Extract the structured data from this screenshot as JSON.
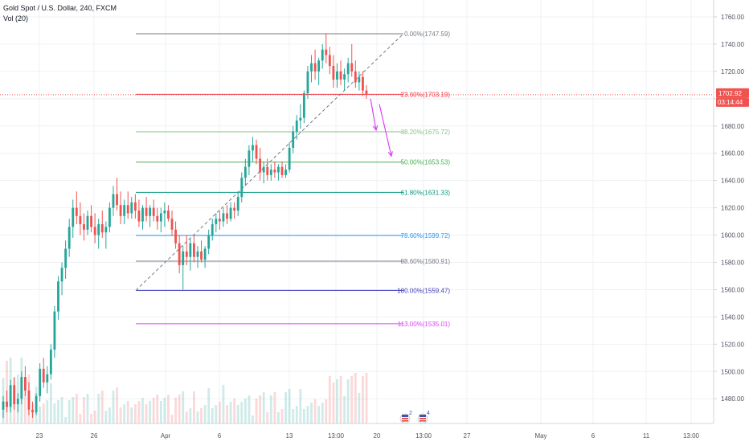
{
  "header": {
    "symbol_line": "Gold Spot / U.S. Dollar, 240, FXCM",
    "volume_label": "Vol (20)"
  },
  "colors": {
    "up": "#26a69a",
    "down": "#ef5350",
    "grid": "#eef1f5",
    "axis_text": "#50535e"
  },
  "price_axis": {
    "labels": [
      "1760.00",
      "1740.00",
      "1720.00",
      "1700.00",
      "1680.00",
      "1660.00",
      "1640.00",
      "1620.00",
      "1600.00",
      "1580.00",
      "1560.00",
      "1540.00",
      "1520.00",
      "1500.00",
      "1480.00"
    ],
    "last_price": "1702.92",
    "countdown": "03:14:44"
  },
  "time_axis": {
    "labels": [
      "23",
      "26",
      "Apr",
      "6",
      "13",
      "13:00",
      "20",
      "13:00",
      "27",
      "May",
      "6",
      "11",
      "13:00"
    ]
  },
  "events": [
    {
      "icon": "us-flag-event-icon",
      "count": "2"
    },
    {
      "icon": "us-flag-event-icon",
      "count": "4"
    }
  ],
  "chart_data": {
    "type": "candlestick",
    "symbol": "Gold Spot / U.S. Dollar",
    "interval": "240",
    "exchange": "FXCM",
    "y_range": [
      1466,
      1770
    ],
    "grid": true,
    "fib_levels": [
      {
        "label": "0.00%(1747.59)",
        "ratio": 0.0,
        "price": 1747.59,
        "color": "#787b86"
      },
      {
        "label": "23.60%(1703.19)",
        "ratio": 0.236,
        "price": 1703.19,
        "color": "#f23645"
      },
      {
        "label": "38.20%(1675.72)",
        "ratio": 0.382,
        "price": 1675.72,
        "color": "#81c784"
      },
      {
        "label": "50.00%(1653.53)",
        "ratio": 0.5,
        "price": 1653.53,
        "color": "#4caf50"
      },
      {
        "label": "61.80%(1631.33)",
        "ratio": 0.618,
        "price": 1631.33,
        "color": "#089981"
      },
      {
        "label": "78.60%(1599.72)",
        "ratio": 0.786,
        "price": 1599.72,
        "color": "#2196f3"
      },
      {
        "label": "88.60%(1580.91)",
        "ratio": 0.886,
        "price": 1580.91,
        "color": "#787b86"
      },
      {
        "label": "100.00%(1559.47)",
        "ratio": 1.0,
        "price": 1559.47,
        "color": "#3f3fb8"
      },
      {
        "label": "113.00%(1535.01)",
        "ratio": 1.13,
        "price": 1535.01,
        "color": "#e040fb"
      }
    ],
    "last_price": 1702.92,
    "candles": [
      {
        "o": 1472,
        "h": 1482,
        "l": 1466,
        "c": 1478
      },
      {
        "o": 1478,
        "h": 1486,
        "l": 1470,
        "c": 1474
      },
      {
        "o": 1474,
        "h": 1494,
        "l": 1470,
        "c": 1490
      },
      {
        "o": 1490,
        "h": 1496,
        "l": 1472,
        "c": 1476
      },
      {
        "o": 1476,
        "h": 1484,
        "l": 1470,
        "c": 1480
      },
      {
        "o": 1480,
        "h": 1500,
        "l": 1476,
        "c": 1496
      },
      {
        "o": 1496,
        "h": 1504,
        "l": 1482,
        "c": 1486
      },
      {
        "o": 1486,
        "h": 1492,
        "l": 1468,
        "c": 1472
      },
      {
        "o": 1472,
        "h": 1478,
        "l": 1466,
        "c": 1470
      },
      {
        "o": 1470,
        "h": 1484,
        "l": 1468,
        "c": 1482
      },
      {
        "o": 1482,
        "h": 1506,
        "l": 1478,
        "c": 1502
      },
      {
        "o": 1502,
        "h": 1510,
        "l": 1488,
        "c": 1492
      },
      {
        "o": 1492,
        "h": 1504,
        "l": 1484,
        "c": 1498
      },
      {
        "o": 1498,
        "h": 1520,
        "l": 1494,
        "c": 1516
      },
      {
        "o": 1516,
        "h": 1548,
        "l": 1510,
        "c": 1544
      },
      {
        "o": 1544,
        "h": 1570,
        "l": 1538,
        "c": 1566
      },
      {
        "o": 1566,
        "h": 1580,
        "l": 1556,
        "c": 1576
      },
      {
        "o": 1576,
        "h": 1596,
        "l": 1568,
        "c": 1590
      },
      {
        "o": 1590,
        "h": 1612,
        "l": 1584,
        "c": 1606
      },
      {
        "o": 1606,
        "h": 1626,
        "l": 1598,
        "c": 1620
      },
      {
        "o": 1620,
        "h": 1632,
        "l": 1608,
        "c": 1614
      },
      {
        "o": 1614,
        "h": 1624,
        "l": 1600,
        "c": 1608
      },
      {
        "o": 1608,
        "h": 1616,
        "l": 1596,
        "c": 1604
      },
      {
        "o": 1604,
        "h": 1618,
        "l": 1600,
        "c": 1614
      },
      {
        "o": 1614,
        "h": 1622,
        "l": 1602,
        "c": 1606
      },
      {
        "o": 1606,
        "h": 1616,
        "l": 1594,
        "c": 1600
      },
      {
        "o": 1600,
        "h": 1612,
        "l": 1590,
        "c": 1608
      },
      {
        "o": 1608,
        "h": 1618,
        "l": 1598,
        "c": 1602
      },
      {
        "o": 1602,
        "h": 1610,
        "l": 1590,
        "c": 1606
      },
      {
        "o": 1606,
        "h": 1624,
        "l": 1602,
        "c": 1620
      },
      {
        "o": 1620,
        "h": 1636,
        "l": 1614,
        "c": 1630
      },
      {
        "o": 1630,
        "h": 1642,
        "l": 1618,
        "c": 1622
      },
      {
        "o": 1622,
        "h": 1632,
        "l": 1608,
        "c": 1614
      },
      {
        "o": 1614,
        "h": 1626,
        "l": 1608,
        "c": 1622
      },
      {
        "o": 1622,
        "h": 1632,
        "l": 1612,
        "c": 1616
      },
      {
        "o": 1616,
        "h": 1628,
        "l": 1612,
        "c": 1624
      },
      {
        "o": 1624,
        "h": 1630,
        "l": 1612,
        "c": 1618
      },
      {
        "o": 1618,
        "h": 1626,
        "l": 1606,
        "c": 1610
      },
      {
        "o": 1610,
        "h": 1622,
        "l": 1604,
        "c": 1620
      },
      {
        "o": 1620,
        "h": 1628,
        "l": 1610,
        "c": 1614
      },
      {
        "o": 1614,
        "h": 1622,
        "l": 1606,
        "c": 1620
      },
      {
        "o": 1620,
        "h": 1626,
        "l": 1610,
        "c": 1614
      },
      {
        "o": 1614,
        "h": 1620,
        "l": 1604,
        "c": 1610
      },
      {
        "o": 1610,
        "h": 1620,
        "l": 1602,
        "c": 1616
      },
      {
        "o": 1616,
        "h": 1624,
        "l": 1606,
        "c": 1618
      },
      {
        "o": 1618,
        "h": 1622,
        "l": 1610,
        "c": 1612
      },
      {
        "o": 1612,
        "h": 1618,
        "l": 1600,
        "c": 1604
      },
      {
        "o": 1604,
        "h": 1610,
        "l": 1590,
        "c": 1594
      },
      {
        "o": 1594,
        "h": 1600,
        "l": 1572,
        "c": 1578
      },
      {
        "o": 1578,
        "h": 1592,
        "l": 1560,
        "c": 1588
      },
      {
        "o": 1588,
        "h": 1600,
        "l": 1578,
        "c": 1584
      },
      {
        "o": 1584,
        "h": 1598,
        "l": 1574,
        "c": 1594
      },
      {
        "o": 1594,
        "h": 1600,
        "l": 1580,
        "c": 1584
      },
      {
        "o": 1584,
        "h": 1592,
        "l": 1576,
        "c": 1588
      },
      {
        "o": 1588,
        "h": 1596,
        "l": 1580,
        "c": 1582
      },
      {
        "o": 1582,
        "h": 1592,
        "l": 1576,
        "c": 1590
      },
      {
        "o": 1590,
        "h": 1604,
        "l": 1586,
        "c": 1600
      },
      {
        "o": 1600,
        "h": 1612,
        "l": 1596,
        "c": 1608
      },
      {
        "o": 1608,
        "h": 1616,
        "l": 1602,
        "c": 1612
      },
      {
        "o": 1612,
        "h": 1618,
        "l": 1604,
        "c": 1610
      },
      {
        "o": 1610,
        "h": 1620,
        "l": 1606,
        "c": 1616
      },
      {
        "o": 1616,
        "h": 1622,
        "l": 1608,
        "c": 1612
      },
      {
        "o": 1612,
        "h": 1624,
        "l": 1610,
        "c": 1620
      },
      {
        "o": 1620,
        "h": 1624,
        "l": 1612,
        "c": 1618
      },
      {
        "o": 1618,
        "h": 1632,
        "l": 1614,
        "c": 1628
      },
      {
        "o": 1628,
        "h": 1646,
        "l": 1624,
        "c": 1642
      },
      {
        "o": 1642,
        "h": 1656,
        "l": 1636,
        "c": 1650
      },
      {
        "o": 1650,
        "h": 1666,
        "l": 1644,
        "c": 1662
      },
      {
        "o": 1662,
        "h": 1672,
        "l": 1654,
        "c": 1666
      },
      {
        "o": 1666,
        "h": 1670,
        "l": 1652,
        "c": 1656
      },
      {
        "o": 1656,
        "h": 1664,
        "l": 1640,
        "c": 1646
      },
      {
        "o": 1646,
        "h": 1654,
        "l": 1638,
        "c": 1650
      },
      {
        "o": 1650,
        "h": 1656,
        "l": 1640,
        "c": 1644
      },
      {
        "o": 1644,
        "h": 1652,
        "l": 1640,
        "c": 1648
      },
      {
        "o": 1648,
        "h": 1654,
        "l": 1642,
        "c": 1646
      },
      {
        "o": 1646,
        "h": 1652,
        "l": 1640,
        "c": 1650
      },
      {
        "o": 1650,
        "h": 1654,
        "l": 1642,
        "c": 1644
      },
      {
        "o": 1644,
        "h": 1652,
        "l": 1642,
        "c": 1648
      },
      {
        "o": 1648,
        "h": 1668,
        "l": 1646,
        "c": 1664
      },
      {
        "o": 1664,
        "h": 1680,
        "l": 1660,
        "c": 1676
      },
      {
        "o": 1676,
        "h": 1688,
        "l": 1670,
        "c": 1684
      },
      {
        "o": 1684,
        "h": 1696,
        "l": 1678,
        "c": 1686
      },
      {
        "o": 1686,
        "h": 1706,
        "l": 1682,
        "c": 1704
      },
      {
        "o": 1704,
        "h": 1724,
        "l": 1700,
        "c": 1720
      },
      {
        "o": 1720,
        "h": 1732,
        "l": 1712,
        "c": 1726
      },
      {
        "o": 1726,
        "h": 1736,
        "l": 1714,
        "c": 1720
      },
      {
        "o": 1720,
        "h": 1730,
        "l": 1710,
        "c": 1728
      },
      {
        "o": 1728,
        "h": 1740,
        "l": 1722,
        "c": 1736
      },
      {
        "o": 1736,
        "h": 1748,
        "l": 1726,
        "c": 1732
      },
      {
        "o": 1732,
        "h": 1738,
        "l": 1718,
        "c": 1724
      },
      {
        "o": 1724,
        "h": 1732,
        "l": 1708,
        "c": 1714
      },
      {
        "o": 1714,
        "h": 1726,
        "l": 1708,
        "c": 1720
      },
      {
        "o": 1720,
        "h": 1728,
        "l": 1710,
        "c": 1714
      },
      {
        "o": 1714,
        "h": 1722,
        "l": 1706,
        "c": 1718
      },
      {
        "o": 1718,
        "h": 1730,
        "l": 1712,
        "c": 1726
      },
      {
        "o": 1726,
        "h": 1740,
        "l": 1716,
        "c": 1720
      },
      {
        "o": 1720,
        "h": 1728,
        "l": 1708,
        "c": 1712
      },
      {
        "o": 1712,
        "h": 1720,
        "l": 1706,
        "c": 1716
      },
      {
        "o": 1716,
        "h": 1720,
        "l": 1702,
        "c": 1706
      },
      {
        "o": 1706,
        "h": 1710,
        "l": 1700,
        "c": 1703
      }
    ]
  }
}
